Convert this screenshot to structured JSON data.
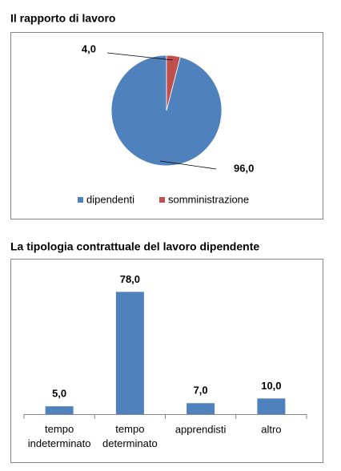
{
  "chart_data": [
    {
      "type": "pie",
      "title": "Il rapporto di lavoro",
      "categories": [
        "dipendenti",
        "somministrazione"
      ],
      "values": [
        96,
        4
      ],
      "value_labels": [
        "96,0",
        "4,0"
      ],
      "colors": [
        "#4f81bd",
        "#c0504d"
      ],
      "legend": "bottom"
    },
    {
      "type": "bar",
      "title": "La tipologia contrattuale del lavoro dipendente",
      "categories": [
        "tempo indeterminato",
        "tempo determinato",
        "apprendisti",
        "altro"
      ],
      "values": [
        5,
        78,
        7,
        10
      ],
      "value_labels": [
        "5,0",
        "78,0",
        "7,0",
        "10,0"
      ],
      "color": "#4f81bd",
      "ylim": [
        0,
        93
      ]
    }
  ]
}
